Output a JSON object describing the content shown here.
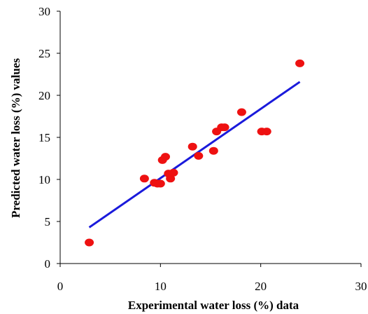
{
  "chart_data": {
    "type": "scatter",
    "title": "",
    "xlabel": "Experimental water loss (%) data",
    "ylabel": "Predicted water loss (%) values",
    "xlim": [
      0,
      30
    ],
    "ylim": [
      0,
      30
    ],
    "x_ticks": [
      "0",
      "10",
      "20",
      "30"
    ],
    "y_ticks": [
      "0",
      "5",
      "10",
      "15",
      "20",
      "25",
      "30"
    ],
    "grid": false,
    "legend": "none",
    "series": [
      {
        "color": "#ee1111",
        "x": [
          2.9,
          8.4,
          9.4,
          9.7,
          10.0,
          10.2,
          10.5,
          10.8,
          11.0,
          11.3,
          13.2,
          13.8,
          15.3,
          15.6,
          16.1,
          16.4,
          18.1,
          20.1,
          20.6,
          23.9
        ],
        "y": [
          2.5,
          10.1,
          9.6,
          9.5,
          9.5,
          12.3,
          12.7,
          10.7,
          10.1,
          10.8,
          13.9,
          12.8,
          13.4,
          15.7,
          16.2,
          16.2,
          18.0,
          15.7,
          15.7,
          23.8
        ]
      }
    ],
    "fit_line": {
      "color": "#1a1adb",
      "x": [
        2.9,
        23.9
      ],
      "y": [
        4.3,
        21.6
      ]
    }
  }
}
